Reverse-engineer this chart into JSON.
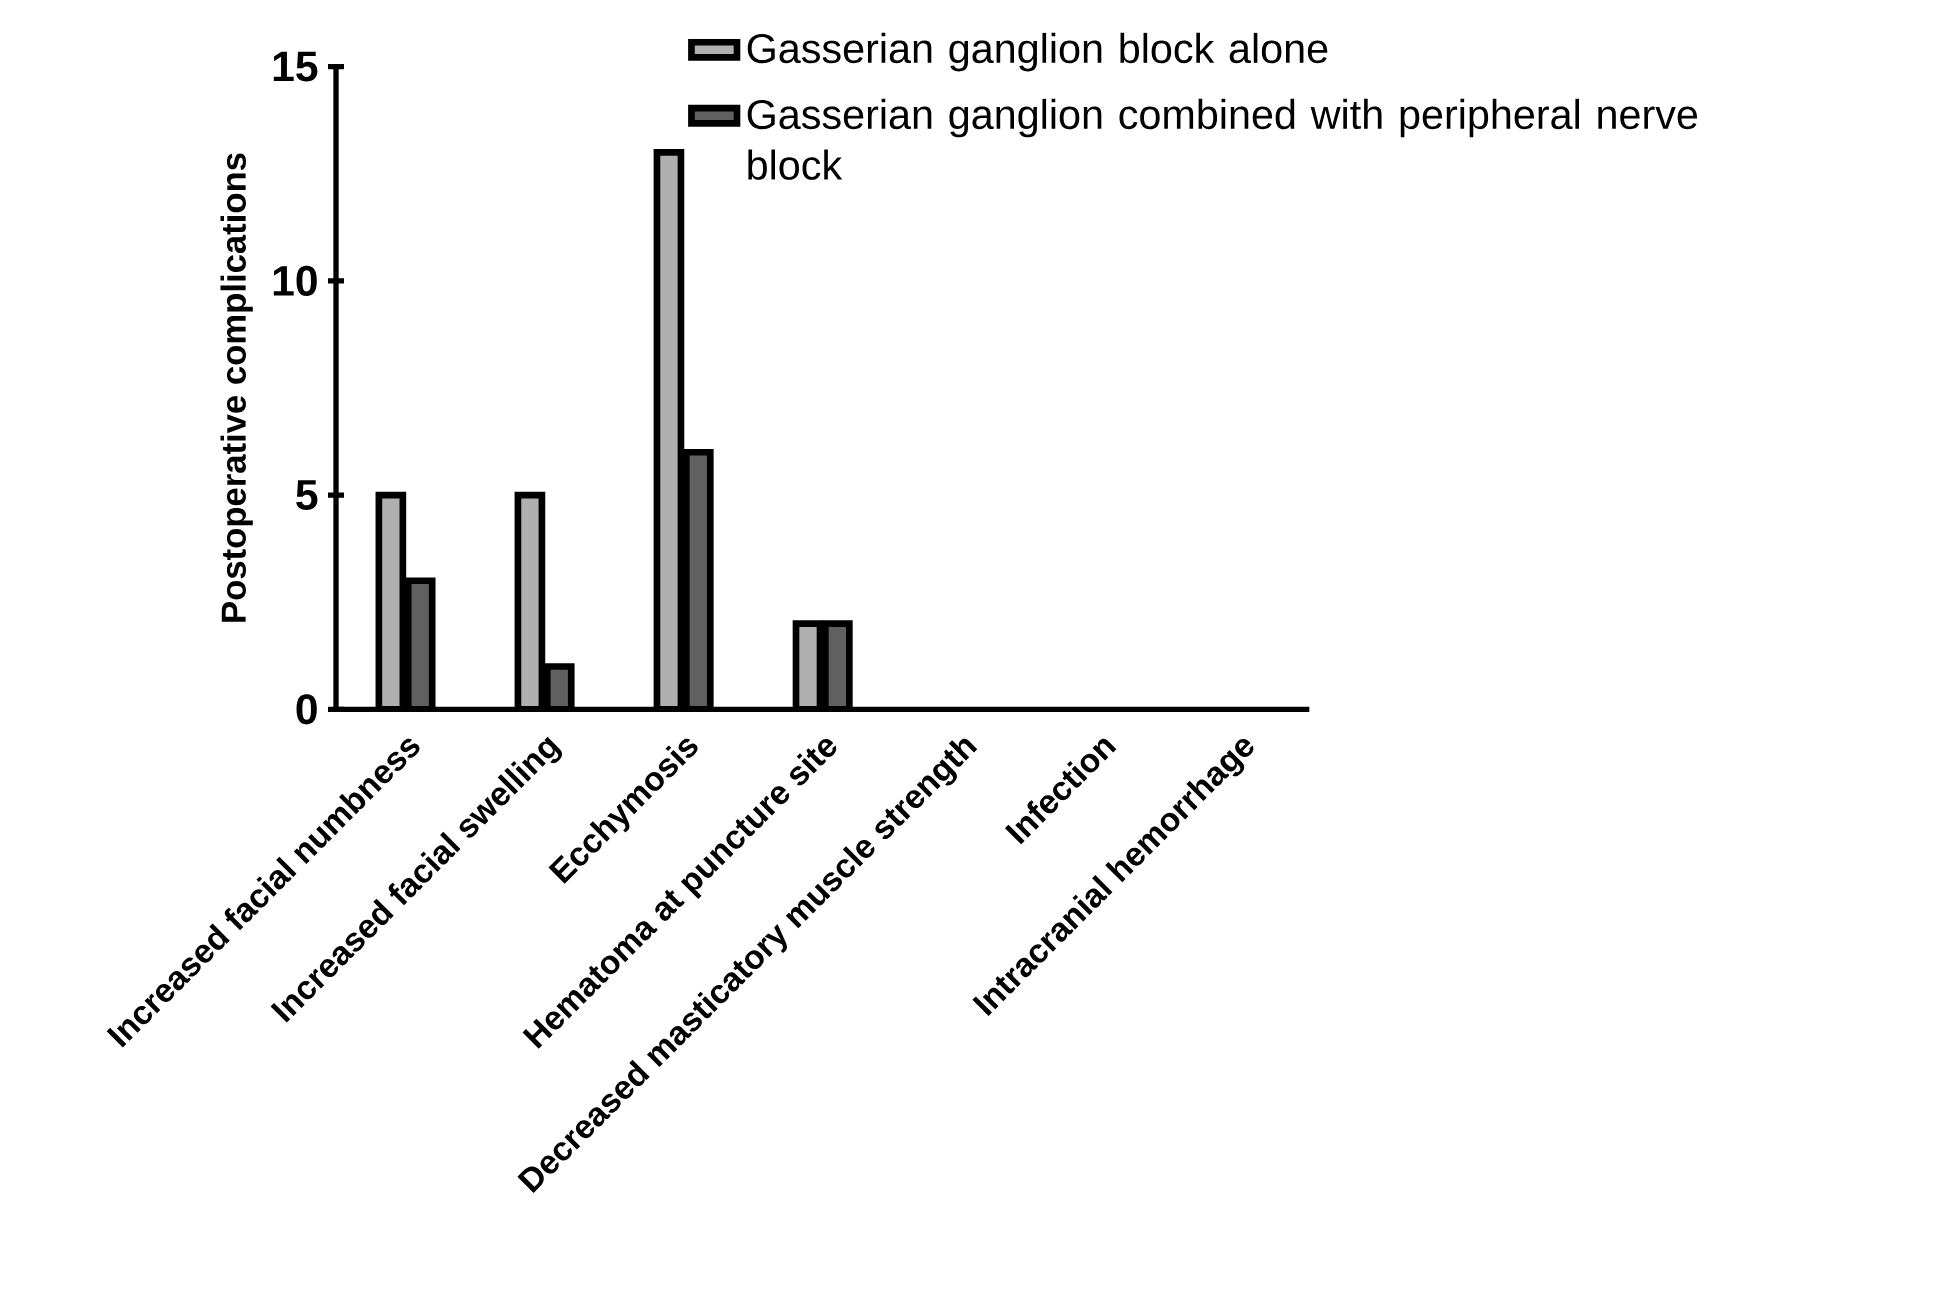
{
  "chart_data": {
    "type": "bar",
    "ylabel": "Postoperative complications",
    "categories": [
      "Increased facial numbness",
      "Increased facial swelling",
      "Ecchymosis",
      "Hematoma at puncture site",
      "Decreased masticatory muscle strength",
      "Infection",
      "Intracranial hemorrhage"
    ],
    "series": [
      {
        "name": "Gasserian ganglion block alone",
        "color": "#b0b0b0",
        "values": [
          5,
          5,
          13,
          2,
          0,
          0,
          0
        ]
      },
      {
        "name": "Gasserian ganglion combined with peripheral nerve block",
        "color": "#606060",
        "values": [
          3,
          1,
          6,
          2,
          0,
          0,
          0
        ]
      }
    ],
    "ylim": [
      0,
      15
    ],
    "yticks": [
      0,
      5,
      10,
      15
    ],
    "legend": "top right"
  }
}
